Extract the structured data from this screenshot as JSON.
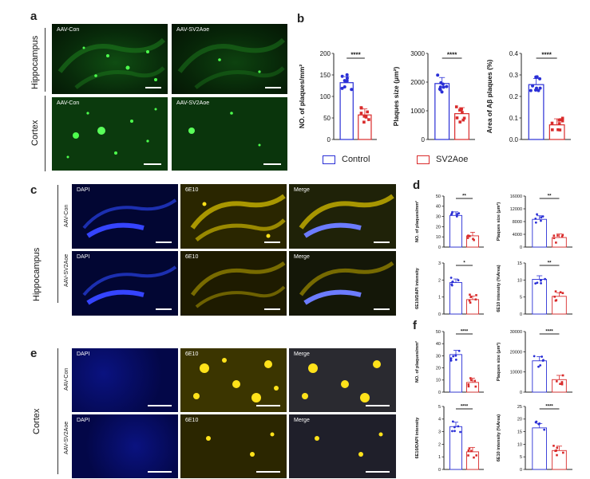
{
  "panels": {
    "a": "a",
    "b": "b",
    "c": "c",
    "d": "d",
    "e": "e",
    "f": "f"
  },
  "labels": {
    "hippocampus": "Hippocampus",
    "cortex": "Cortex",
    "aav_con": "AAV-Con",
    "aav_sv2aoe": "AAV-SV2Aoe",
    "dapi": "DAPI",
    "ab": "6E10",
    "merge": "Merge"
  },
  "legend": {
    "control": "Control",
    "sv2aoe": "SV2Aoe"
  },
  "colors": {
    "control": "#2a2fd6",
    "sv2aoe": "#d92b2b",
    "gfp": "#1ee01e",
    "dapi": "#2c2cff",
    "ab": "#ffe21a"
  },
  "chart_data": [
    {
      "id": "b1",
      "type": "bar",
      "ylabel": "NO. of plaques/mm²",
      "ylim": [
        0,
        200
      ],
      "yticks": [
        "0",
        "50",
        "100",
        "150",
        "200"
      ],
      "values": [
        132,
        57
      ],
      "sig": "****"
    },
    {
      "id": "b2",
      "type": "bar",
      "ylabel": "Plaques size (μm²)",
      "ylim": [
        0,
        3000
      ],
      "yticks": [
        "0",
        "1000",
        "2000",
        "3000"
      ],
      "values": [
        1950,
        900
      ],
      "sig": "****"
    },
    {
      "id": "b3",
      "type": "bar",
      "ylabel": "Area of Aβ plaques (%)",
      "ylim": [
        0,
        0.4
      ],
      "yticks": [
        "0.0",
        "0.1",
        "0.2",
        "0.3",
        "0.4"
      ],
      "values": [
        0.255,
        0.068
      ],
      "sig": "****"
    },
    {
      "id": "d1",
      "type": "bar",
      "ylabel": "NO. of plaques/mm²",
      "ylim": [
        0,
        50
      ],
      "yticks": [
        "0",
        "10",
        "20",
        "30",
        "40",
        "50"
      ],
      "values": [
        31,
        11
      ],
      "sig": "**"
    },
    {
      "id": "d2",
      "type": "bar",
      "ylabel": "Plaques size (μm²)",
      "ylim": [
        0,
        16000
      ],
      "yticks": [
        "0",
        "4000",
        "8000",
        "12000",
        "16000"
      ],
      "values": [
        8700,
        3000
      ],
      "sig": "**"
    },
    {
      "id": "d3",
      "type": "bar",
      "ylabel": "6E10/DAPI intensity",
      "ylim": [
        0,
        3
      ],
      "yticks": [
        "0",
        "1",
        "2",
        "3"
      ],
      "values": [
        1.85,
        0.85
      ],
      "sig": "*"
    },
    {
      "id": "d4",
      "type": "bar",
      "ylabel": "6E10 intensity (%Area)",
      "ylim": [
        0,
        15
      ],
      "yticks": [
        "0",
        "5",
        "10",
        "15"
      ],
      "values": [
        10.2,
        5.2
      ],
      "sig": "**"
    },
    {
      "id": "f1",
      "type": "bar",
      "ylabel": "NO. of plaques/mm²",
      "ylim": [
        0,
        50
      ],
      "yticks": [
        "0",
        "10",
        "20",
        "30",
        "40",
        "50"
      ],
      "values": [
        31,
        8
      ],
      "sig": "****"
    },
    {
      "id": "f2",
      "type": "bar",
      "ylabel": "Plaques size (μm²)",
      "ylim": [
        0,
        30000
      ],
      "yticks": [
        "0",
        "10000",
        "20000",
        "30000"
      ],
      "values": [
        15500,
        6200
      ],
      "sig": "****"
    },
    {
      "id": "f3",
      "type": "bar",
      "ylabel": "6E10/DAPI intensity",
      "ylim": [
        0,
        5
      ],
      "yticks": [
        "0",
        "1",
        "2",
        "3",
        "4",
        "5"
      ],
      "values": [
        3.4,
        1.4
      ],
      "sig": "****"
    },
    {
      "id": "f4",
      "type": "bar",
      "ylabel": "6E10 intensity (%Area)",
      "ylim": [
        0,
        25
      ],
      "yticks": [
        "0",
        "5",
        "10",
        "15",
        "20",
        "25"
      ],
      "values": [
        16.5,
        7.5
      ],
      "sig": "****"
    }
  ]
}
